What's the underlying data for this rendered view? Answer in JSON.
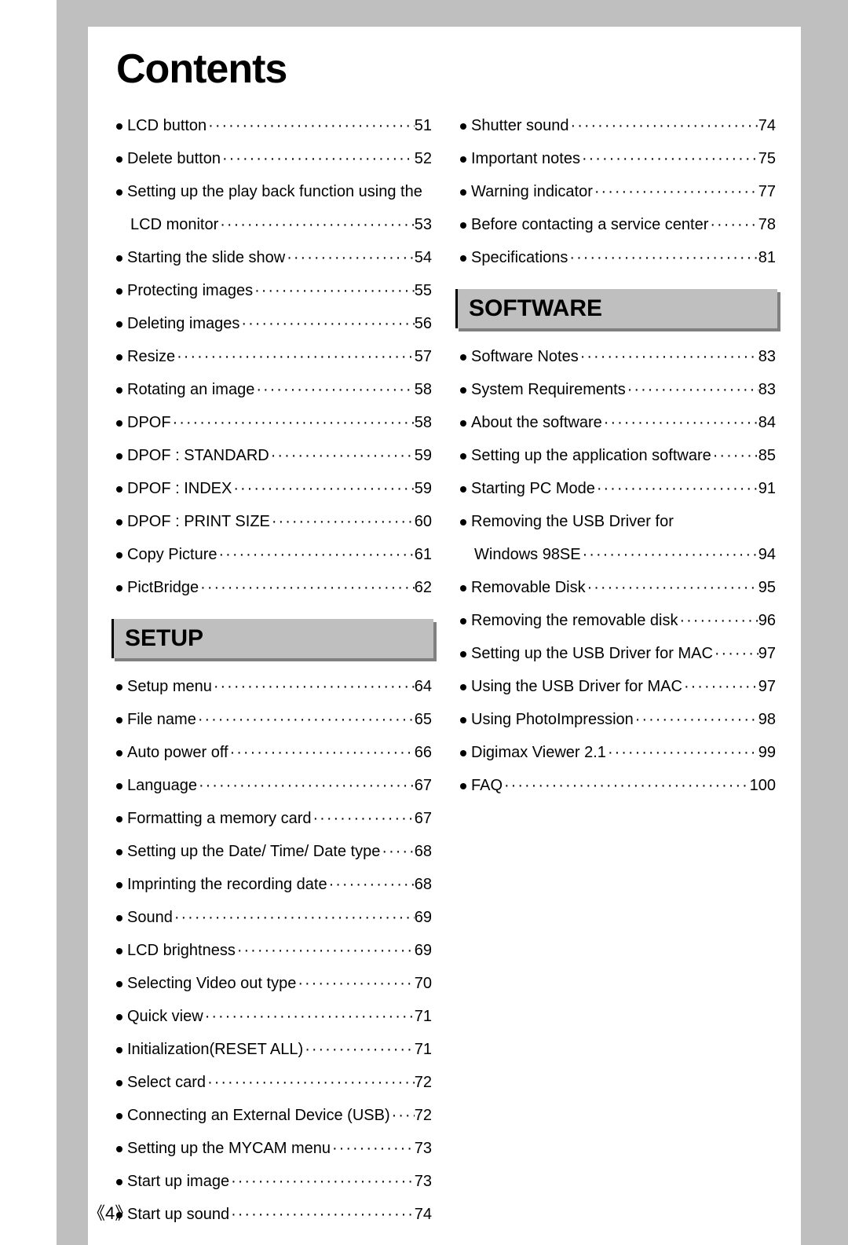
{
  "title": "Contents",
  "page_number": "4",
  "colors": {
    "page_bg": "#bfbfbf",
    "inner_bg": "#ffffff",
    "header_bg": "#bfbfbf",
    "header_shadow": "#808080",
    "text": "#000000"
  },
  "left_column": {
    "lists": [
      {
        "header": null,
        "items": [
          {
            "label": "LCD button",
            "page": "51"
          },
          {
            "label": "Delete button",
            "page": "52"
          },
          {
            "label": "Setting up the play back function using the",
            "page": null,
            "no_leader": true
          },
          {
            "label": "LCD monitor",
            "page": "53",
            "continuation": true
          },
          {
            "label": "Starting the slide show",
            "page": "54"
          },
          {
            "label": "Protecting images",
            "page": "55"
          },
          {
            "label": "Deleting images",
            "page": "56"
          },
          {
            "label": "Resize",
            "page": "57"
          },
          {
            "label": "Rotating an image",
            "page": "58"
          },
          {
            "label": "DPOF",
            "page": "58"
          },
          {
            "label": "DPOF : STANDARD",
            "page": "59"
          },
          {
            "label": "DPOF : INDEX",
            "page": "59"
          },
          {
            "label": "DPOF : PRINT SIZE",
            "page": "60"
          },
          {
            "label": "Copy Picture",
            "page": "61"
          },
          {
            "label": "PictBridge",
            "page": "62"
          }
        ]
      },
      {
        "header": "SETUP",
        "items": [
          {
            "label": "Setup menu",
            "page": "64"
          },
          {
            "label": "File name",
            "page": "65"
          },
          {
            "label": "Auto power off",
            "page": "66"
          },
          {
            "label": "Language",
            "page": "67"
          },
          {
            "label": "Formatting a memory card",
            "page": "67"
          },
          {
            "label": "Setting up the Date/ Time/ Date type",
            "page": "68"
          },
          {
            "label": "Imprinting the recording date",
            "page": "68"
          },
          {
            "label": "Sound",
            "page": "69"
          },
          {
            "label": "LCD brightness",
            "page": "69"
          },
          {
            "label": "Selecting Video out type",
            "page": "70"
          },
          {
            "label": "Quick view",
            "page": "71"
          },
          {
            "label": "Initialization(RESET ALL)",
            "page": "71"
          },
          {
            "label": "Select card",
            "page": "72"
          },
          {
            "label": "Connecting an External Device (USB)",
            "page": "72"
          },
          {
            "label": "Setting up the MYCAM menu",
            "page": "73"
          },
          {
            "label": "Start up image",
            "page": "73"
          },
          {
            "label": "Start up sound",
            "page": "74"
          }
        ]
      }
    ]
  },
  "right_column": {
    "lists": [
      {
        "header": null,
        "items": [
          {
            "label": "Shutter sound",
            "page": "74"
          },
          {
            "label": "Important notes",
            "page": "75"
          },
          {
            "label": "Warning indicator",
            "page": "77"
          },
          {
            "label": "Before contacting a service center",
            "page": "78"
          },
          {
            "label": "Specifications",
            "page": "81"
          }
        ]
      },
      {
        "header": "SOFTWARE",
        "items": [
          {
            "label": "Software Notes",
            "page": "83"
          },
          {
            "label": "System Requirements",
            "page": "83"
          },
          {
            "label": "About the software",
            "page": "84"
          },
          {
            "label": "Setting up the application software",
            "page": "85"
          },
          {
            "label": "Starting PC Mode",
            "page": "91"
          },
          {
            "label": "Removing the USB Driver for",
            "page": null,
            "no_leader": true
          },
          {
            "label": "Windows 98SE",
            "page": "94",
            "continuation": true
          },
          {
            "label": "Removable Disk",
            "page": "95"
          },
          {
            "label": "Removing the removable disk",
            "page": "96"
          },
          {
            "label": "Setting up the USB Driver for MAC",
            "page": "97"
          },
          {
            "label": "Using the USB Driver for MAC",
            "page": "97"
          },
          {
            "label": "Using PhotoImpression",
            "page": "98"
          },
          {
            "label": "Digimax Viewer 2.1",
            "page": "99"
          },
          {
            "label": "FAQ",
            "page": "100"
          }
        ]
      }
    ]
  }
}
